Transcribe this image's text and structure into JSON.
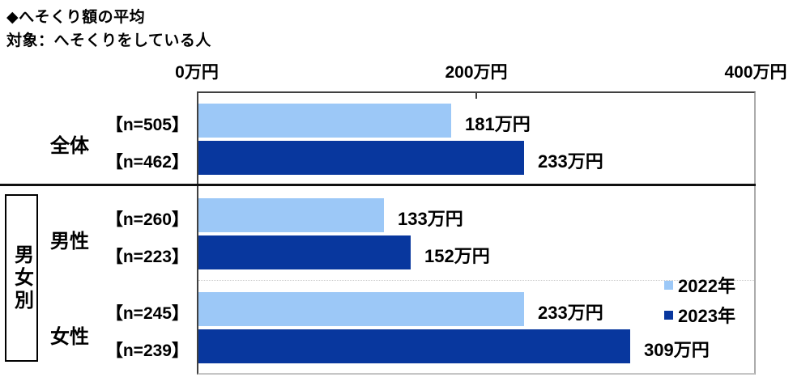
{
  "title": "◆へそくり額の平均",
  "subtitle": "対象：へそくりをしている人",
  "chart_data": {
    "type": "bar",
    "orientation": "horizontal",
    "title": "◆へそくり額の平均",
    "target_note": "対象：へそくりをしている人",
    "unit": "万円",
    "x_axis": {
      "min": 0,
      "max": 400,
      "ticks": [
        {
          "label": "0万円",
          "value": 0
        },
        {
          "label": "200万円",
          "value": 200
        },
        {
          "label": "400万円",
          "value": 400
        }
      ]
    },
    "grid": "off",
    "section_label": "男女別",
    "series": [
      {
        "name": "2022年",
        "color": "#9CC8F7"
      },
      {
        "name": "2023年",
        "color": "#08379E"
      }
    ],
    "groups": [
      {
        "label": "全体",
        "section": null,
        "rows": [
          {
            "series": "2022年",
            "n_label": "【n=505】",
            "value": 181,
            "value_label": "181万円"
          },
          {
            "series": "2023年",
            "n_label": "【n=462】",
            "value": 233,
            "value_label": "233万円"
          }
        ]
      },
      {
        "label": "男性",
        "section": "男女別",
        "rows": [
          {
            "series": "2022年",
            "n_label": "【n=260】",
            "value": 133,
            "value_label": "133万円"
          },
          {
            "series": "2023年",
            "n_label": "【n=223】",
            "value": 152,
            "value_label": "152万円"
          }
        ]
      },
      {
        "label": "女性",
        "section": "男女別",
        "rows": [
          {
            "series": "2022年",
            "n_label": "【n=245】",
            "value": 233,
            "value_label": "233万円"
          },
          {
            "series": "2023年",
            "n_label": "【n=239】",
            "value": 309,
            "value_label": "309万円"
          }
        ]
      }
    ],
    "legend": {
      "position": "right-middle",
      "items": [
        {
          "label": "2022年",
          "color": "#9CC8F7"
        },
        {
          "label": "2023年",
          "color": "#08379E"
        }
      ]
    }
  }
}
